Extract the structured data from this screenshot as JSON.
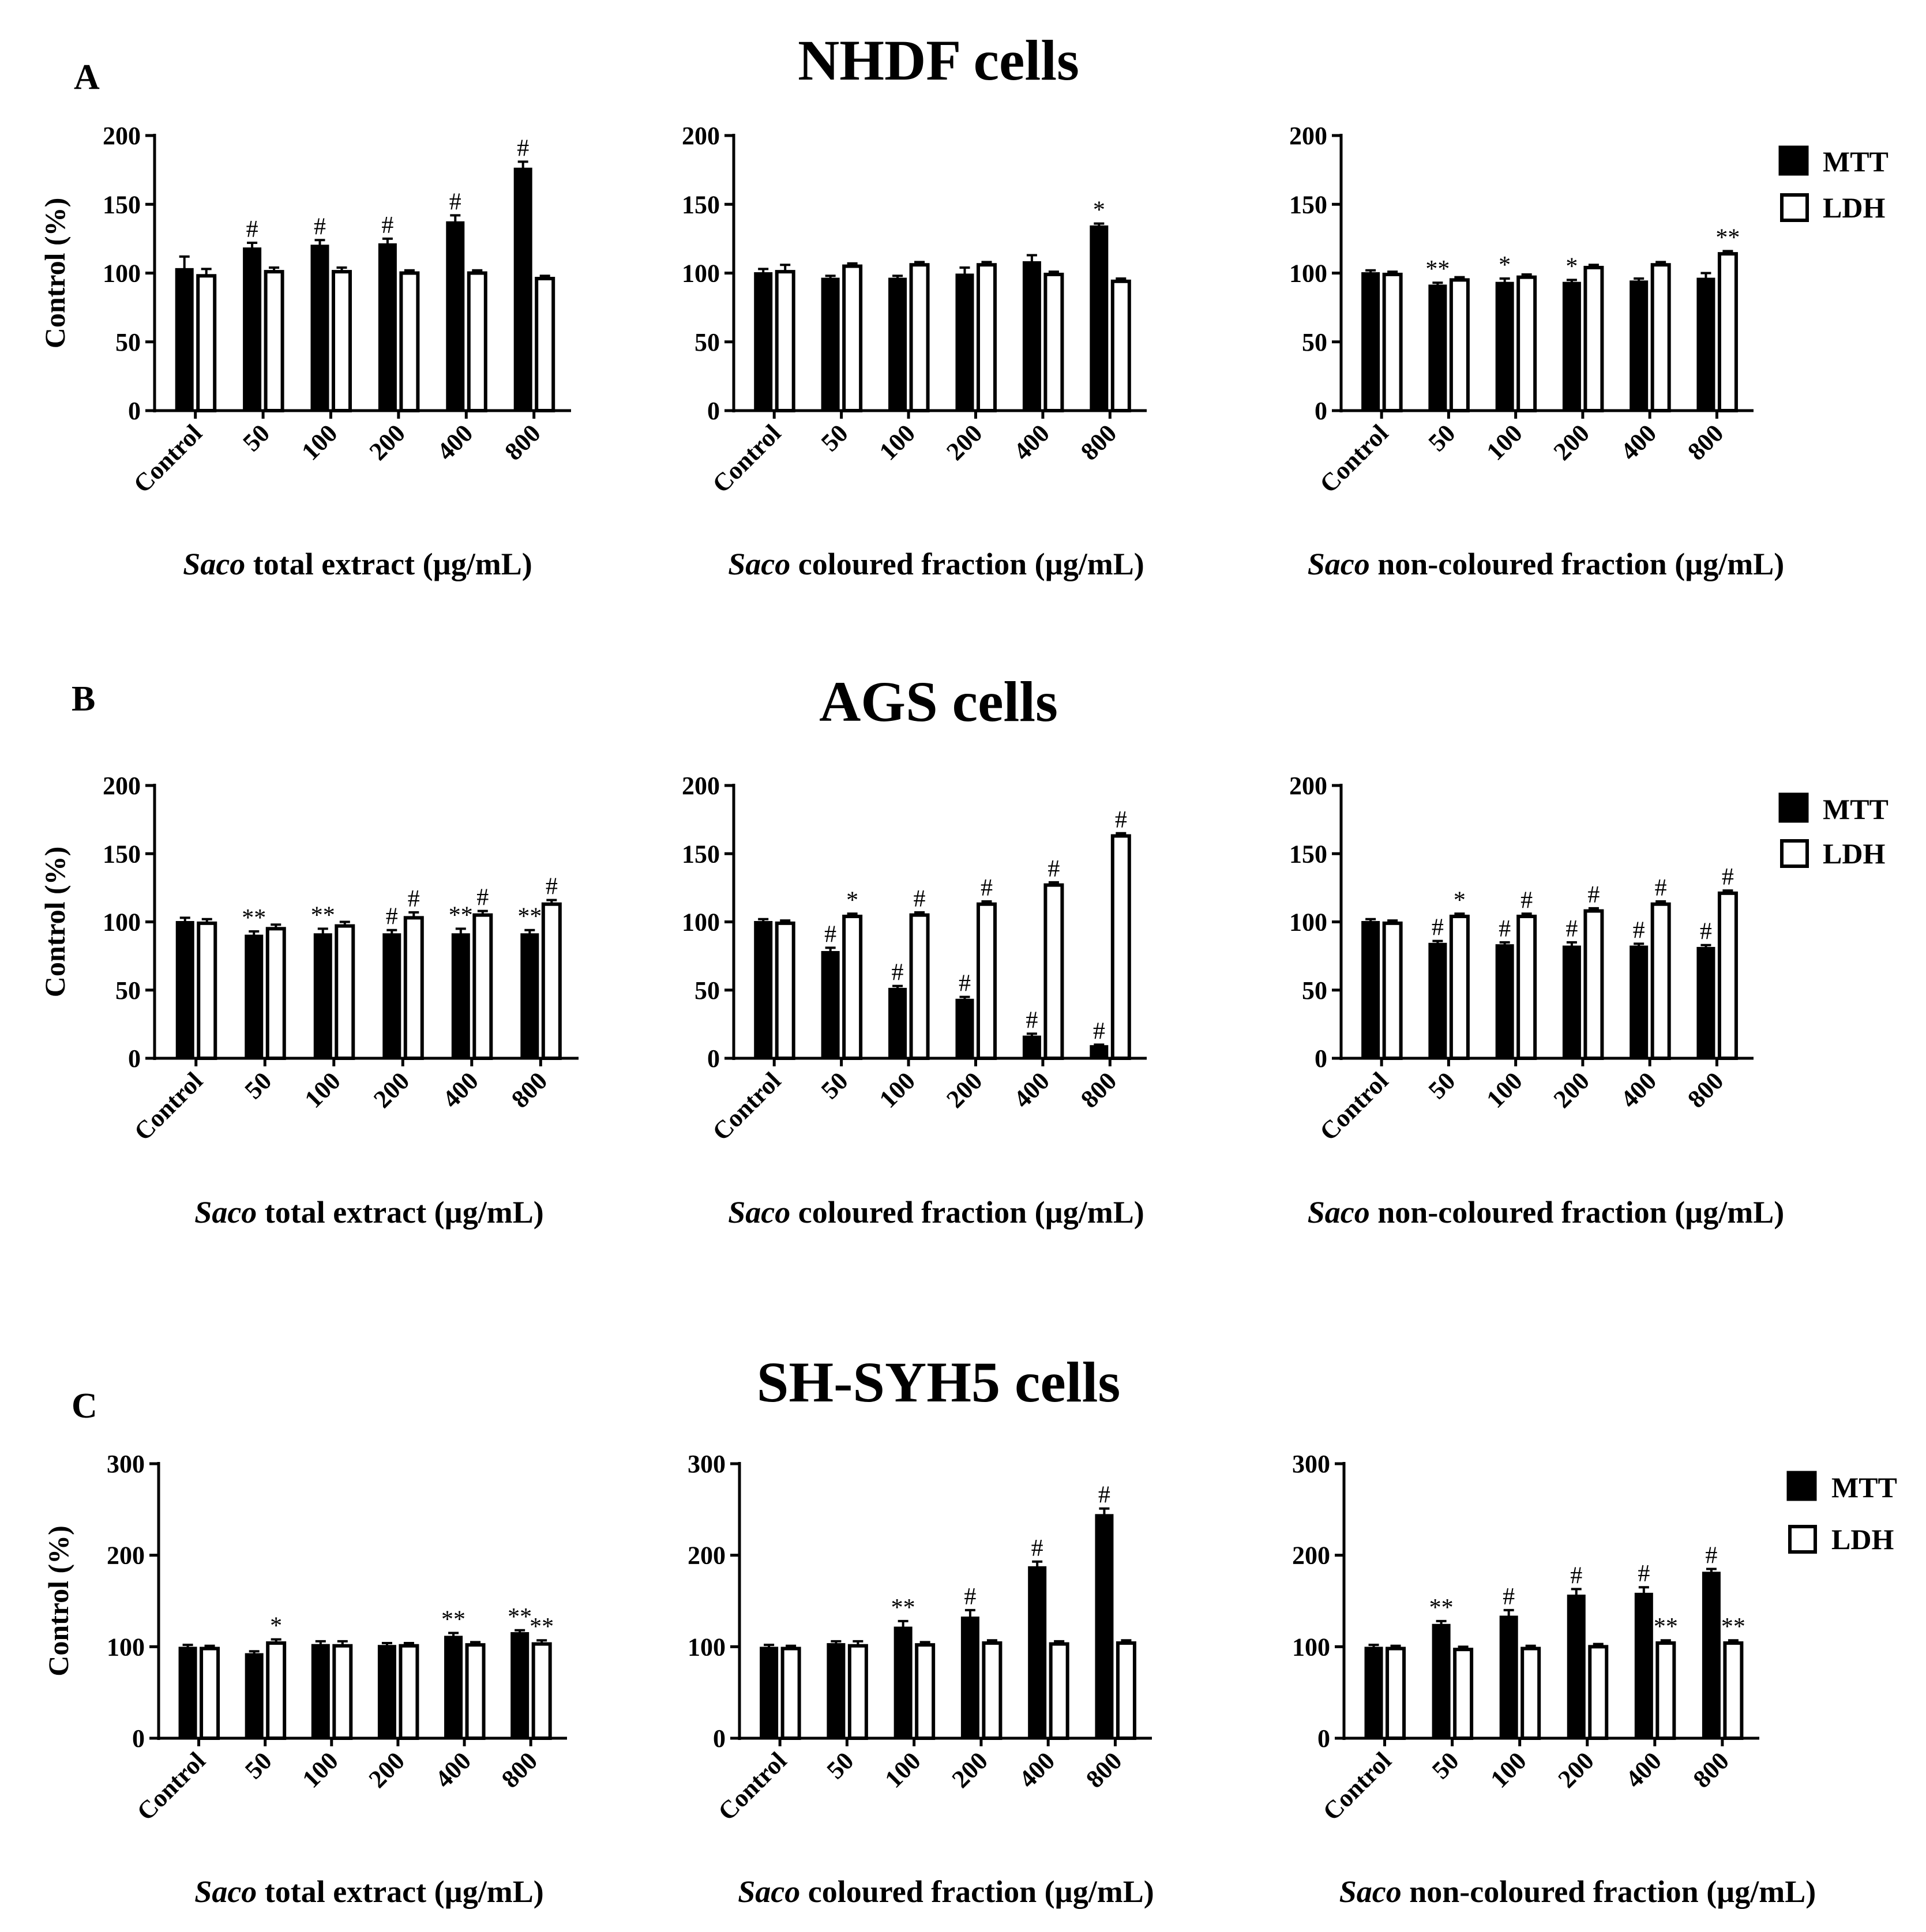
{
  "legend": {
    "mtt": "MTT",
    "ldh": "LDH",
    "mtt_color": "#000000",
    "ldh_color": "#ffffff"
  },
  "ylabel": "Control (%)",
  "chart_data": [
    {
      "type": "bar",
      "row": "A",
      "title": "NHDF cells",
      "xlabel_italic": "Saco",
      "xlabel": " total extract (µg/mL)",
      "ylabel": "Control (%)",
      "ylim": [
        0,
        200
      ],
      "yticks": [
        "0",
        "50",
        "100",
        "150",
        "200"
      ],
      "categories": [
        "Control",
        "50",
        "100",
        "200",
        "400",
        "800"
      ],
      "series": [
        {
          "name": "MTT",
          "values": [
            103,
            118,
            120,
            121,
            137,
            176
          ],
          "errors": [
            9,
            4,
            4,
            4,
            5,
            5
          ],
          "annotations": [
            "",
            "#",
            "#",
            "#",
            "#",
            "#"
          ]
        },
        {
          "name": "LDH",
          "values": [
            98,
            101,
            101,
            100,
            100,
            96
          ],
          "errors": [
            5,
            3,
            3,
            2,
            2,
            2
          ],
          "annotations": [
            "",
            "",
            "",
            "",
            "",
            ""
          ]
        }
      ]
    },
    {
      "type": "bar",
      "row": "A",
      "xlabel_italic": "Saco",
      "xlabel": " coloured fraction (µg/mL)",
      "ylim": [
        0,
        200
      ],
      "yticks": [
        "0",
        "50",
        "100",
        "150",
        "200"
      ],
      "categories": [
        "Control",
        "50",
        "100",
        "200",
        "400",
        "800"
      ],
      "series": [
        {
          "name": "MTT",
          "values": [
            100,
            96,
            96,
            99,
            108,
            134
          ],
          "errors": [
            3,
            2,
            2,
            5,
            5,
            2
          ],
          "annotations": [
            "",
            "",
            "",
            "",
            "",
            "*"
          ]
        },
        {
          "name": "LDH",
          "values": [
            101,
            105,
            106,
            106,
            99,
            94
          ],
          "errors": [
            5,
            2,
            2,
            2,
            2,
            2
          ],
          "annotations": [
            "",
            "",
            "",
            "",
            "",
            ""
          ]
        }
      ]
    },
    {
      "type": "bar",
      "row": "A",
      "xlabel_italic": "Saco",
      "xlabel": " non-coloured fraction (µg/mL)",
      "ylim": [
        0,
        200
      ],
      "yticks": [
        "0",
        "50",
        "100",
        "150",
        "200"
      ],
      "categories": [
        "Control",
        "50",
        "100",
        "200",
        "400",
        "800"
      ],
      "series": [
        {
          "name": "MTT",
          "values": [
            100,
            91,
            93,
            93,
            94,
            96
          ],
          "errors": [
            2,
            2,
            3,
            2,
            2,
            4
          ],
          "annotations": [
            "",
            "**",
            "*",
            "*",
            "",
            ""
          ]
        },
        {
          "name": "LDH",
          "values": [
            99,
            95,
            97,
            104,
            106,
            114
          ],
          "errors": [
            2,
            2,
            2,
            2,
            2,
            2
          ],
          "annotations": [
            "",
            "",
            "",
            "",
            "",
            "**"
          ]
        }
      ]
    },
    {
      "type": "bar",
      "row": "B",
      "title": "AGS cells",
      "xlabel_italic": "Saco",
      "xlabel": " total extract (µg/mL)",
      "ylabel": "Control (%)",
      "ylim": [
        0,
        200
      ],
      "yticks": [
        "0",
        "50",
        "100",
        "150",
        "200"
      ],
      "categories": [
        "Control",
        "50",
        "100",
        "200",
        "400",
        "800"
      ],
      "series": [
        {
          "name": "MTT",
          "values": [
            100,
            90,
            91,
            91,
            91,
            91
          ],
          "errors": [
            3,
            3,
            4,
            3,
            4,
            3
          ],
          "annotations": [
            "",
            "**",
            "**",
            "#",
            "**",
            "**"
          ]
        },
        {
          "name": "LDH",
          "values": [
            99,
            95,
            97,
            103,
            105,
            113
          ],
          "errors": [
            3,
            3,
            3,
            4,
            3,
            3
          ],
          "annotations": [
            "",
            "",
            "",
            "#",
            "#",
            "#"
          ]
        }
      ]
    },
    {
      "type": "bar",
      "row": "B",
      "xlabel_italic": "Saco",
      "xlabel": " coloured fraction (µg/mL)",
      "ylim": [
        0,
        200
      ],
      "yticks": [
        "0",
        "50",
        "100",
        "150",
        "200"
      ],
      "categories": [
        "Control",
        "50",
        "100",
        "200",
        "400",
        "800"
      ],
      "series": [
        {
          "name": "MTT",
          "values": [
            100,
            78,
            51,
            43,
            16,
            9
          ],
          "errors": [
            2,
            3,
            2,
            2,
            2,
            1
          ],
          "annotations": [
            "",
            "#",
            "#",
            "#",
            "#",
            "#"
          ]
        },
        {
          "name": "LDH",
          "values": [
            99,
            104,
            105,
            113,
            127,
            163
          ],
          "errors": [
            2,
            2,
            2,
            2,
            2,
            2
          ],
          "annotations": [
            "",
            "*",
            "#",
            "#",
            "#",
            "#"
          ]
        }
      ]
    },
    {
      "type": "bar",
      "row": "B",
      "xlabel_italic": "Saco",
      "xlabel": " non-coloured fraction (µg/mL)",
      "ylim": [
        0,
        200
      ],
      "yticks": [
        "0",
        "50",
        "100",
        "150",
        "200"
      ],
      "categories": [
        "Control",
        "50",
        "100",
        "200",
        "400",
        "800"
      ],
      "series": [
        {
          "name": "MTT",
          "values": [
            100,
            84,
            83,
            82,
            82,
            81
          ],
          "errors": [
            2,
            2,
            2,
            3,
            2,
            2
          ],
          "annotations": [
            "",
            "#",
            "#",
            "#",
            "#",
            "#"
          ]
        },
        {
          "name": "LDH",
          "values": [
            99,
            104,
            104,
            108,
            113,
            121
          ],
          "errors": [
            2,
            2,
            2,
            2,
            2,
            2
          ],
          "annotations": [
            "",
            "*",
            "#",
            "#",
            "#",
            "#"
          ]
        }
      ]
    },
    {
      "type": "bar",
      "row": "C",
      "title": "SH-SYH5 cells",
      "xlabel_italic": "Saco",
      "xlabel": " total extract (µg/mL)",
      "ylabel": "Control (%)",
      "ylim": [
        0,
        300
      ],
      "yticks": [
        "0",
        "100",
        "200",
        "300"
      ],
      "categories": [
        "Control",
        "50",
        "100",
        "200",
        "400",
        "800"
      ],
      "series": [
        {
          "name": "MTT",
          "values": [
            99,
            92,
            102,
            101,
            111,
            115
          ],
          "errors": [
            3,
            3,
            4,
            3,
            4,
            3
          ],
          "annotations": [
            "",
            "",
            "",
            "",
            "**",
            "**"
          ]
        },
        {
          "name": "LDH",
          "values": [
            98,
            104,
            101,
            101,
            102,
            103
          ],
          "errors": [
            3,
            4,
            5,
            3,
            3,
            4
          ],
          "annotations": [
            "",
            "*",
            "",
            "",
            "",
            "**"
          ]
        }
      ]
    },
    {
      "type": "bar",
      "row": "C",
      "xlabel_italic": "Saco",
      "xlabel": " coloured fraction (µg/mL)",
      "ylim": [
        0,
        300
      ],
      "yticks": [
        "0",
        "100",
        "200",
        "300"
      ],
      "categories": [
        "Control",
        "50",
        "100",
        "200",
        "400",
        "800"
      ],
      "series": [
        {
          "name": "MTT",
          "values": [
            99,
            103,
            121,
            132,
            187,
            244
          ],
          "errors": [
            3,
            3,
            7,
            8,
            6,
            7
          ],
          "annotations": [
            "",
            "",
            "**",
            "#",
            "#",
            "#"
          ]
        },
        {
          "name": "LDH",
          "values": [
            98,
            101,
            102,
            104,
            103,
            104
          ],
          "errors": [
            3,
            5,
            3,
            3,
            3,
            3
          ],
          "annotations": [
            "",
            "",
            "",
            "",
            "",
            ""
          ]
        }
      ]
    },
    {
      "type": "bar",
      "row": "C",
      "xlabel_italic": "Saco",
      "xlabel": " non-coloured fraction (µg/mL)",
      "ylim": [
        0,
        300
      ],
      "yticks": [
        "0",
        "100",
        "200",
        "300"
      ],
      "categories": [
        "Control",
        "50",
        "100",
        "200",
        "400",
        "800"
      ],
      "series": [
        {
          "name": "MTT",
          "values": [
            99,
            124,
            133,
            156,
            158,
            181
          ],
          "errors": [
            3,
            4,
            7,
            7,
            7,
            4
          ],
          "annotations": [
            "",
            "**",
            "#",
            "#",
            "#",
            "#"
          ]
        },
        {
          "name": "LDH",
          "values": [
            98,
            97,
            98,
            100,
            104,
            104
          ],
          "errors": [
            3,
            3,
            3,
            3,
            3,
            3
          ],
          "annotations": [
            "",
            "",
            "",
            "",
            "**",
            "**"
          ]
        }
      ]
    }
  ]
}
